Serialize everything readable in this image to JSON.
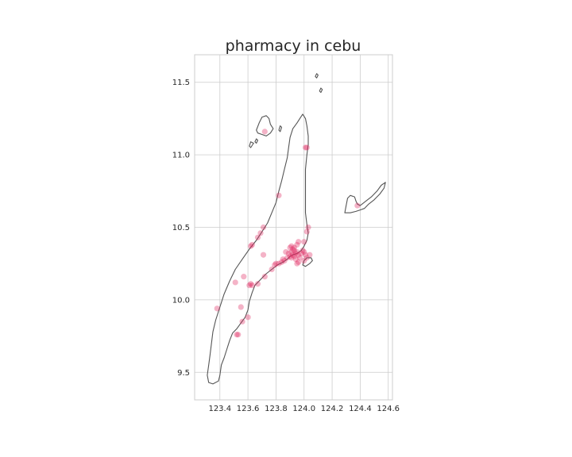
{
  "chart_data": {
    "type": "scatter",
    "title": "pharmacy in cebu",
    "xlabel": "",
    "ylabel": "",
    "xlim": [
      123.22,
      124.63
    ],
    "ylim": [
      9.31,
      11.69
    ],
    "xticks": [
      123.4,
      123.6,
      123.8,
      124.0,
      124.2,
      124.4,
      124.6
    ],
    "xtick_labels": [
      "123.4",
      "123.6",
      "123.8",
      "124.0",
      "124.2",
      "124.4",
      "124.6"
    ],
    "yticks": [
      9.5,
      10.0,
      10.5,
      11.0,
      11.5
    ],
    "ytick_labels": [
      "9.5",
      "10.0",
      "10.5",
      "11.0",
      "11.5"
    ],
    "grid": true,
    "marker_color": "#e0245e",
    "outline_color": "#555555",
    "points": [
      [
        123.72,
        11.16
      ],
      [
        124.01,
        11.05
      ],
      [
        124.02,
        11.05
      ],
      [
        123.82,
        10.72
      ],
      [
        124.38,
        10.65
      ],
      [
        124.03,
        10.5
      ],
      [
        124.02,
        10.47
      ],
      [
        123.71,
        10.5
      ],
      [
        123.69,
        10.46
      ],
      [
        123.67,
        10.43
      ],
      [
        123.63,
        10.38
      ],
      [
        123.62,
        10.37
      ],
      [
        123.71,
        10.31
      ],
      [
        123.96,
        10.4
      ],
      [
        124.0,
        10.4
      ],
      [
        123.95,
        10.38
      ],
      [
        123.9,
        10.36
      ],
      [
        123.92,
        10.35
      ],
      [
        123.93,
        10.34
      ],
      [
        123.91,
        10.33
      ],
      [
        123.89,
        10.32
      ],
      [
        123.94,
        10.32
      ],
      [
        123.95,
        10.33
      ],
      [
        123.92,
        10.31
      ],
      [
        123.9,
        10.3
      ],
      [
        123.93,
        10.3
      ],
      [
        123.96,
        10.31
      ],
      [
        123.98,
        10.32
      ],
      [
        124.0,
        10.33
      ],
      [
        123.97,
        10.29
      ],
      [
        123.94,
        10.28
      ],
      [
        123.91,
        10.29
      ],
      [
        123.88,
        10.29
      ],
      [
        123.86,
        10.27
      ],
      [
        123.84,
        10.26
      ],
      [
        123.82,
        10.25
      ],
      [
        123.8,
        10.25
      ],
      [
        123.79,
        10.24
      ],
      [
        123.77,
        10.21
      ],
      [
        123.96,
        10.26
      ],
      [
        123.95,
        10.25
      ],
      [
        124.0,
        10.27
      ],
      [
        124.02,
        10.29
      ],
      [
        124.04,
        10.31
      ],
      [
        124.01,
        10.31
      ],
      [
        123.87,
        10.33
      ],
      [
        123.85,
        10.28
      ],
      [
        123.91,
        10.37
      ],
      [
        123.93,
        10.36
      ],
      [
        123.99,
        10.34
      ],
      [
        123.72,
        10.16
      ],
      [
        123.67,
        10.11
      ],
      [
        123.62,
        10.11
      ],
      [
        123.61,
        10.1
      ],
      [
        123.63,
        10.1
      ],
      [
        123.57,
        10.16
      ],
      [
        123.51,
        10.12
      ],
      [
        123.55,
        9.95
      ],
      [
        123.38,
        9.94
      ],
      [
        123.6,
        9.88
      ],
      [
        123.56,
        9.85
      ],
      [
        123.53,
        9.76
      ],
      [
        123.52,
        9.76
      ]
    ],
    "coastlines": [
      {
        "name": "cebu-main",
        "coords": [
          [
            123.39,
            9.44
          ],
          [
            123.4,
            9.48
          ],
          [
            123.41,
            9.55
          ],
          [
            123.43,
            9.6
          ],
          [
            123.45,
            9.66
          ],
          [
            123.47,
            9.72
          ],
          [
            123.49,
            9.77
          ],
          [
            123.52,
            9.8
          ],
          [
            123.55,
            9.84
          ],
          [
            123.58,
            9.88
          ],
          [
            123.6,
            9.93
          ],
          [
            123.61,
            9.99
          ],
          [
            123.63,
            10.05
          ],
          [
            123.65,
            10.1
          ],
          [
            123.69,
            10.14
          ],
          [
            123.73,
            10.18
          ],
          [
            123.77,
            10.21
          ],
          [
            123.81,
            10.24
          ],
          [
            123.85,
            10.26
          ],
          [
            123.88,
            10.28
          ],
          [
            123.9,
            10.3
          ],
          [
            123.92,
            10.31
          ],
          [
            123.95,
            10.32
          ],
          [
            123.98,
            10.34
          ],
          [
            124.0,
            10.37
          ],
          [
            124.02,
            10.41
          ],
          [
            124.03,
            10.46
          ],
          [
            124.02,
            10.52
          ],
          [
            124.01,
            10.6
          ],
          [
            124.01,
            10.7
          ],
          [
            124.01,
            10.8
          ],
          [
            124.01,
            10.9
          ],
          [
            124.02,
            11.0
          ],
          [
            124.03,
            11.07
          ],
          [
            124.03,
            11.13
          ],
          [
            124.02,
            11.2
          ],
          [
            124.01,
            11.25
          ],
          [
            123.99,
            11.28
          ],
          [
            123.97,
            11.25
          ],
          [
            123.95,
            11.22
          ],
          [
            123.92,
            11.18
          ],
          [
            123.9,
            11.12
          ],
          [
            123.89,
            11.05
          ],
          [
            123.88,
            10.98
          ],
          [
            123.86,
            10.9
          ],
          [
            123.84,
            10.82
          ],
          [
            123.82,
            10.75
          ],
          [
            123.8,
            10.67
          ],
          [
            123.77,
            10.6
          ],
          [
            123.74,
            10.53
          ],
          [
            123.7,
            10.47
          ],
          [
            123.66,
            10.41
          ],
          [
            123.61,
            10.35
          ],
          [
            123.56,
            10.28
          ],
          [
            123.51,
            10.21
          ],
          [
            123.47,
            10.13
          ],
          [
            123.43,
            10.04
          ],
          [
            123.4,
            9.95
          ],
          [
            123.37,
            9.86
          ],
          [
            123.35,
            9.78
          ],
          [
            123.34,
            9.7
          ],
          [
            123.33,
            9.62
          ],
          [
            123.32,
            9.55
          ],
          [
            123.31,
            9.48
          ],
          [
            123.32,
            9.43
          ],
          [
            123.35,
            9.42
          ],
          [
            123.39,
            9.44
          ]
        ]
      },
      {
        "name": "bantayan-island",
        "coords": [
          [
            123.66,
            11.17
          ],
          [
            123.68,
            11.22
          ],
          [
            123.7,
            11.26
          ],
          [
            123.73,
            11.27
          ],
          [
            123.75,
            11.25
          ],
          [
            123.76,
            11.21
          ],
          [
            123.78,
            11.18
          ],
          [
            123.76,
            11.15
          ],
          [
            123.73,
            11.13
          ],
          [
            123.7,
            11.14
          ],
          [
            123.67,
            11.15
          ],
          [
            123.66,
            11.17
          ]
        ]
      },
      {
        "name": "leyte-coast-islands",
        "coords": [
          [
            124.29,
            10.6
          ],
          [
            124.3,
            10.65
          ],
          [
            124.31,
            10.7
          ],
          [
            124.33,
            10.72
          ],
          [
            124.36,
            10.71
          ],
          [
            124.37,
            10.68
          ],
          [
            124.38,
            10.66
          ],
          [
            124.4,
            10.65
          ],
          [
            124.44,
            10.68
          ],
          [
            124.48,
            10.71
          ],
          [
            124.52,
            10.75
          ],
          [
            124.55,
            10.79
          ],
          [
            124.58,
            10.81
          ],
          [
            124.57,
            10.77
          ],
          [
            124.54,
            10.73
          ],
          [
            124.5,
            10.69
          ],
          [
            124.46,
            10.66
          ],
          [
            124.43,
            10.63
          ],
          [
            124.4,
            10.62
          ],
          [
            124.37,
            10.61
          ],
          [
            124.33,
            10.6
          ],
          [
            124.29,
            10.6
          ]
        ]
      },
      {
        "name": "mactan-island",
        "coords": [
          [
            123.99,
            10.24
          ],
          [
            124.0,
            10.27
          ],
          [
            124.02,
            10.29
          ],
          [
            124.05,
            10.29
          ],
          [
            124.06,
            10.27
          ],
          [
            124.04,
            10.25
          ],
          [
            124.01,
            10.23
          ],
          [
            123.99,
            10.24
          ]
        ]
      },
      {
        "name": "islet-a",
        "coords": [
          [
            124.11,
            11.44
          ],
          [
            124.12,
            11.46
          ],
          [
            124.13,
            11.45
          ],
          [
            124.12,
            11.43
          ],
          [
            124.11,
            11.44
          ]
        ]
      },
      {
        "name": "islet-b",
        "coords": [
          [
            124.08,
            11.54
          ],
          [
            124.09,
            11.56
          ],
          [
            124.1,
            11.55
          ],
          [
            124.09,
            11.53
          ],
          [
            124.08,
            11.54
          ]
        ]
      },
      {
        "name": "islet-c",
        "coords": [
          [
            123.82,
            11.17
          ],
          [
            123.83,
            11.2
          ],
          [
            123.84,
            11.19
          ],
          [
            123.83,
            11.16
          ],
          [
            123.82,
            11.17
          ]
        ]
      },
      {
        "name": "islet-d",
        "coords": [
          [
            123.61,
            11.06
          ],
          [
            123.62,
            11.09
          ],
          [
            123.64,
            11.08
          ],
          [
            123.62,
            11.05
          ],
          [
            123.61,
            11.06
          ]
        ]
      },
      {
        "name": "islet-e",
        "coords": [
          [
            123.65,
            11.09
          ],
          [
            123.66,
            11.11
          ],
          [
            123.67,
            11.1
          ],
          [
            123.66,
            11.08
          ],
          [
            123.65,
            11.09
          ]
        ]
      }
    ]
  }
}
